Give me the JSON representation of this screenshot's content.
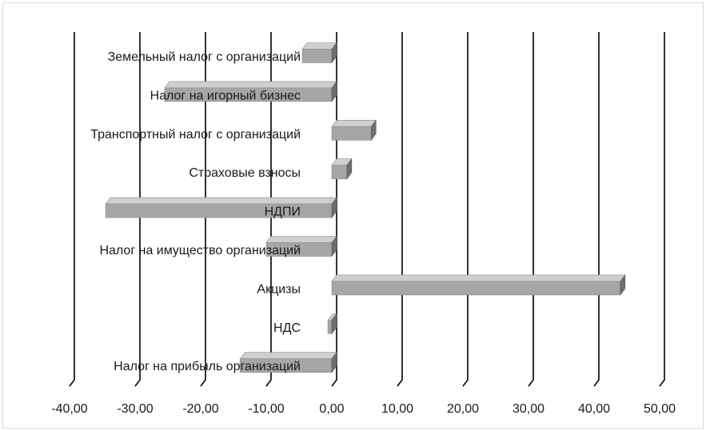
{
  "chart_data": {
    "type": "bar",
    "orientation": "horizontal",
    "style": "3d",
    "categories": [
      "Земельный налог с организаций",
      "Налог на игорный бизнес",
      "Транспортный налог с организаций",
      "Страховые взносы",
      "НДПИ",
      "Налог на имущество организаций",
      "Акцизы",
      "НДС",
      "Налог на прибыль организаций"
    ],
    "values": [
      -4.5,
      -25.5,
      6.0,
      2.3,
      -34.5,
      -10.0,
      44.0,
      -0.6,
      -14.0
    ],
    "xlim": [
      -40,
      50
    ],
    "xticks": [
      -40,
      -30,
      -20,
      -10,
      0,
      10,
      20,
      30,
      40,
      50
    ],
    "xtick_labels": [
      "-40,00",
      "-30,00",
      "-20,00",
      "-10,00",
      "0,00",
      "10,00",
      "20,00",
      "30,00",
      "40,00",
      "50,00"
    ],
    "grid": true,
    "legend": "none",
    "bar_color": "#a6a6a6",
    "bar_top_color": "#cfcfcf",
    "bar_side_color": "#6e6e6e",
    "grid_color": "#000000"
  }
}
